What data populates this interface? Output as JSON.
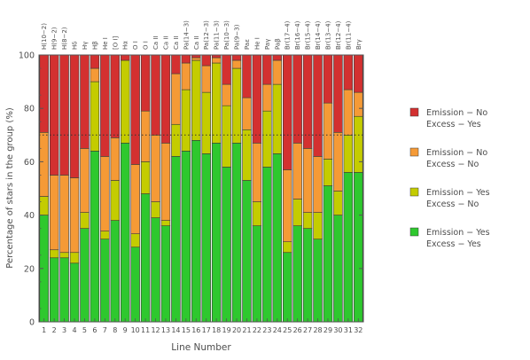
{
  "chart_data": {
    "type": "bar",
    "stacked": true,
    "xlabel": "Line Number",
    "ylabel": "Percentage of stars in the group (%)",
    "ylim": [
      0,
      100
    ],
    "yticks": [
      0,
      20,
      40,
      60,
      80,
      100
    ],
    "grid": false,
    "legend_position": "right",
    "reference_line": {
      "y": 70,
      "style": "dotted"
    },
    "categories": [
      "1",
      "2",
      "3",
      "4",
      "5",
      "6",
      "7",
      "8",
      "9",
      "10",
      "11",
      "12",
      "13",
      "14",
      "15",
      "16",
      "17",
      "18",
      "19",
      "20",
      "21",
      "22",
      "23",
      "24",
      "25",
      "26",
      "27",
      "28",
      "29",
      "30",
      "31",
      "32"
    ],
    "line_labels": [
      "H(10−2)",
      "H(9−2)",
      "H(8−2)",
      "Hδ",
      "Hγ",
      "Hβ",
      "He I",
      "[O I]",
      "Hα",
      "O I",
      "O I",
      "Ca II",
      "Ca II",
      "Ca II",
      "Pa(14−3)",
      "Ca II",
      "Pa(12−3)",
      "Pa(11−3)",
      "Pa(10−3)",
      "Pa(9−3)",
      "Paε",
      "He I",
      "Paγ",
      "Paβ",
      "Br(17−4)",
      "Br(16−4)",
      "Br(15−4)",
      "Br(14−4)",
      "Br(13−4)",
      "Br(12−4)",
      "Br(11−4)",
      "Brγ"
    ],
    "series": [
      {
        "name": "Emission − Yes\nExcess − Yes",
        "color": "#2ec82e",
        "values": [
          40,
          24,
          24,
          22,
          35,
          64,
          31,
          38,
          67,
          28,
          48,
          39,
          36,
          62,
          64,
          68,
          63,
          67,
          58,
          67,
          53,
          36,
          58,
          63,
          26,
          36,
          35,
          31,
          51,
          40,
          56,
          56
        ]
      },
      {
        "name": "Emission − Yes\nExcess − No",
        "color": "#c4cc00",
        "values": [
          7,
          3,
          2,
          4,
          6,
          26,
          3,
          15,
          31,
          5,
          12,
          6,
          2,
          12,
          23,
          30,
          23,
          30,
          23,
          28,
          19,
          9,
          21,
          26,
          4,
          10,
          6,
          10,
          10,
          9,
          14,
          21
        ]
      },
      {
        "name": "Emission −  No\nExcess −  No",
        "color": "#f59a36",
        "values": [
          24,
          28,
          29,
          28,
          24,
          5,
          28,
          16,
          0,
          26,
          19,
          25,
          29,
          19,
          10,
          1,
          10,
          2,
          8,
          3,
          12,
          22,
          10,
          9,
          27,
          21,
          24,
          21,
          21,
          22,
          17,
          9
        ]
      },
      {
        "name": "Emission − No\nExcess − Yes",
        "color": "#d33030",
        "values": [
          29,
          45,
          45,
          46,
          35,
          5,
          38,
          31,
          2,
          41,
          21,
          30,
          33,
          7,
          3,
          1,
          4,
          1,
          11,
          2,
          16,
          33,
          11,
          2,
          43,
          33,
          35,
          38,
          18,
          29,
          13,
          14
        ]
      }
    ]
  }
}
